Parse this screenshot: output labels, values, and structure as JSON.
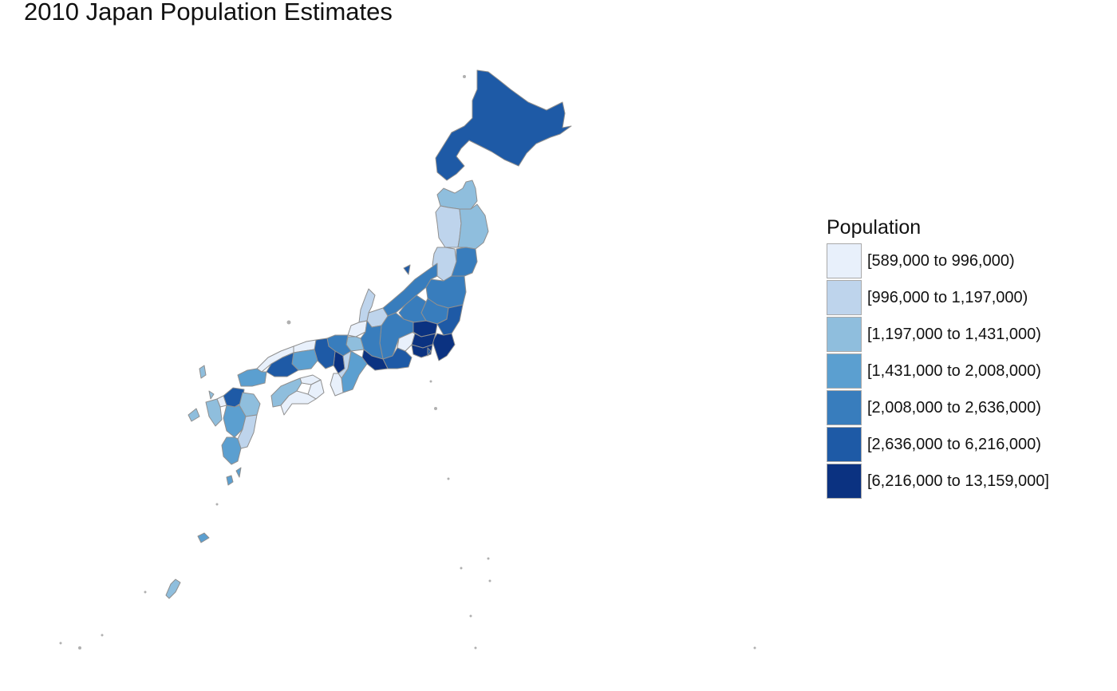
{
  "title": "2010 Japan Population Estimates",
  "legend": {
    "title": "Population",
    "items": [
      {
        "label": "[589,000 to 996,000)",
        "color": "#e8f0fb"
      },
      {
        "label": "[996,000 to 1,197,000)",
        "color": "#bed4ec"
      },
      {
        "label": "[1,197,000 to 1,431,000)",
        "color": "#8fbedd"
      },
      {
        "label": "[1,431,000 to 2,008,000)",
        "color": "#5b9fd0"
      },
      {
        "label": "[2,008,000 to 2,636,000)",
        "color": "#387dbd"
      },
      {
        "label": "[2,636,000 to 6,216,000)",
        "color": "#1e5aa6"
      },
      {
        "label": "[6,216,000 to 13,159,000]",
        "color": "#0b3281"
      }
    ]
  },
  "map": {
    "border_color": "#8f8f8f",
    "regions": [
      {
        "name": "hokkaido",
        "bin": 5
      },
      {
        "name": "aomori",
        "bin": 2
      },
      {
        "name": "akita",
        "bin": 1
      },
      {
        "name": "iwate",
        "bin": 2
      },
      {
        "name": "yamagata",
        "bin": 1
      },
      {
        "name": "miyagi",
        "bin": 4
      },
      {
        "name": "niigata",
        "bin": 4
      },
      {
        "name": "fukushima",
        "bin": 4
      },
      {
        "name": "tochigi",
        "bin": 4
      },
      {
        "name": "gunma",
        "bin": 4
      },
      {
        "name": "ibaraki",
        "bin": 5
      },
      {
        "name": "saitama",
        "bin": 6
      },
      {
        "name": "chiba",
        "bin": 6
      },
      {
        "name": "tokyo",
        "bin": 6
      },
      {
        "name": "kanagawa",
        "bin": 6
      },
      {
        "name": "yamanashi",
        "bin": 0
      },
      {
        "name": "nagano",
        "bin": 4
      },
      {
        "name": "toyama",
        "bin": 1
      },
      {
        "name": "ishikawa",
        "bin": 1
      },
      {
        "name": "fukui",
        "bin": 0
      },
      {
        "name": "gifu",
        "bin": 4
      },
      {
        "name": "shizuoka",
        "bin": 5
      },
      {
        "name": "aichi",
        "bin": 6
      },
      {
        "name": "mie",
        "bin": 3
      },
      {
        "name": "shiga",
        "bin": 2
      },
      {
        "name": "kyoto",
        "bin": 4
      },
      {
        "name": "osaka",
        "bin": 6
      },
      {
        "name": "hyogo",
        "bin": 5
      },
      {
        "name": "nara",
        "bin": 1
      },
      {
        "name": "wakayama",
        "bin": 0
      },
      {
        "name": "tottori",
        "bin": 0
      },
      {
        "name": "shimane",
        "bin": 0
      },
      {
        "name": "okayama",
        "bin": 3
      },
      {
        "name": "hiroshima",
        "bin": 5
      },
      {
        "name": "yamaguchi",
        "bin": 3
      },
      {
        "name": "kagawa",
        "bin": 0
      },
      {
        "name": "tokushima",
        "bin": 0
      },
      {
        "name": "ehime",
        "bin": 2
      },
      {
        "name": "kochi",
        "bin": 0
      },
      {
        "name": "fukuoka",
        "bin": 5
      },
      {
        "name": "saga",
        "bin": 0
      },
      {
        "name": "nagasaki",
        "bin": 2
      },
      {
        "name": "oita",
        "bin": 2
      },
      {
        "name": "kumamoto",
        "bin": 3
      },
      {
        "name": "miyazaki",
        "bin": 1
      },
      {
        "name": "kagoshima",
        "bin": 3
      },
      {
        "name": "okinawa",
        "bin": 2
      }
    ]
  }
}
